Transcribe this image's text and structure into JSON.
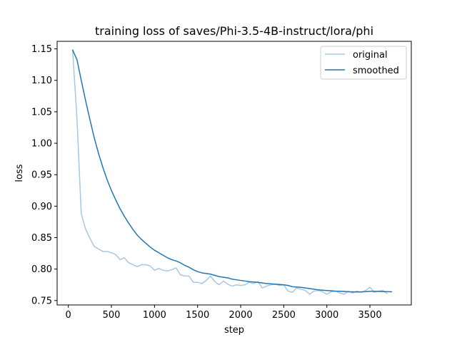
{
  "chart_data": {
    "type": "line",
    "title": "training loss of saves/Phi-3.5-4B-instruct/lora/phi",
    "xlabel": "step",
    "ylabel": "loss",
    "xlim": [
      -130,
      3980
    ],
    "ylim": [
      0.743,
      1.162
    ],
    "xticks": [
      0,
      500,
      1000,
      1500,
      2000,
      2500,
      3000,
      3500
    ],
    "xtick_labels": [
      "0",
      "500",
      "1000",
      "1500",
      "2000",
      "2500",
      "3000",
      "3500"
    ],
    "yticks": [
      0.75,
      0.8,
      0.85,
      0.9,
      0.95,
      1.0,
      1.05,
      1.1,
      1.15
    ],
    "ytick_labels": [
      "0.75",
      "0.80",
      "0.85",
      "0.90",
      "0.95",
      "1.00",
      "1.05",
      "1.10",
      "1.15"
    ],
    "grid": false,
    "legend_position": "top-right",
    "series": [
      {
        "name": "original",
        "color": "#a6c8e2",
        "points": [
          [
            50,
            1.148
          ],
          [
            100,
            1.04
          ],
          [
            150,
            0.888
          ],
          [
            200,
            0.864
          ],
          [
            250,
            0.849
          ],
          [
            300,
            0.836
          ],
          [
            350,
            0.832
          ],
          [
            400,
            0.828
          ],
          [
            450,
            0.828
          ],
          [
            500,
            0.826
          ],
          [
            550,
            0.823
          ],
          [
            600,
            0.815
          ],
          [
            650,
            0.818
          ],
          [
            700,
            0.81
          ],
          [
            750,
            0.807
          ],
          [
            800,
            0.804
          ],
          [
            850,
            0.807
          ],
          [
            900,
            0.807
          ],
          [
            950,
            0.805
          ],
          [
            1000,
            0.798
          ],
          [
            1050,
            0.801
          ],
          [
            1100,
            0.798
          ],
          [
            1150,
            0.797
          ],
          [
            1200,
            0.799
          ],
          [
            1250,
            0.802
          ],
          [
            1300,
            0.791
          ],
          [
            1350,
            0.789
          ],
          [
            1400,
            0.789
          ],
          [
            1450,
            0.779
          ],
          [
            1500,
            0.779
          ],
          [
            1550,
            0.777
          ],
          [
            1600,
            0.782
          ],
          [
            1650,
            0.789
          ],
          [
            1700,
            0.78
          ],
          [
            1750,
            0.775
          ],
          [
            1800,
            0.781
          ],
          [
            1850,
            0.776
          ],
          [
            1900,
            0.773
          ],
          [
            1950,
            0.775
          ],
          [
            2000,
            0.774
          ],
          [
            2050,
            0.775
          ],
          [
            2100,
            0.779
          ],
          [
            2150,
            0.777
          ],
          [
            2200,
            0.78
          ],
          [
            2250,
            0.77
          ],
          [
            2300,
            0.773
          ],
          [
            2350,
            0.775
          ],
          [
            2400,
            0.776
          ],
          [
            2450,
            0.774
          ],
          [
            2500,
            0.775
          ],
          [
            2550,
            0.765
          ],
          [
            2600,
            0.763
          ],
          [
            2650,
            0.77
          ],
          [
            2700,
            0.768
          ],
          [
            2750,
            0.766
          ],
          [
            2800,
            0.76
          ],
          [
            2850,
            0.765
          ],
          [
            2900,
            0.766
          ],
          [
            2950,
            0.764
          ],
          [
            3000,
            0.76
          ],
          [
            3050,
            0.764
          ],
          [
            3100,
            0.765
          ],
          [
            3150,
            0.762
          ],
          [
            3200,
            0.76
          ],
          [
            3250,
            0.765
          ],
          [
            3300,
            0.762
          ],
          [
            3350,
            0.765
          ],
          [
            3400,
            0.763
          ],
          [
            3450,
            0.766
          ],
          [
            3500,
            0.771
          ],
          [
            3550,
            0.763
          ],
          [
            3600,
            0.765
          ],
          [
            3650,
            0.766
          ],
          [
            3700,
            0.761
          ]
        ]
      },
      {
        "name": "smoothed",
        "color": "#1f77b4",
        "points": [
          [
            50,
            1.148
          ],
          [
            100,
            1.133
          ],
          [
            150,
            1.1
          ],
          [
            200,
            1.068
          ],
          [
            250,
            1.038
          ],
          [
            300,
            1.009
          ],
          [
            350,
            0.984
          ],
          [
            400,
            0.962
          ],
          [
            450,
            0.942
          ],
          [
            500,
            0.925
          ],
          [
            550,
            0.91
          ],
          [
            600,
            0.896
          ],
          [
            650,
            0.884
          ],
          [
            700,
            0.873
          ],
          [
            750,
            0.863
          ],
          [
            800,
            0.854
          ],
          [
            850,
            0.847
          ],
          [
            900,
            0.841
          ],
          [
            950,
            0.835
          ],
          [
            1000,
            0.83
          ],
          [
            1050,
            0.826
          ],
          [
            1100,
            0.822
          ],
          [
            1150,
            0.818
          ],
          [
            1200,
            0.815
          ],
          [
            1250,
            0.813
          ],
          [
            1300,
            0.81
          ],
          [
            1350,
            0.806
          ],
          [
            1400,
            0.803
          ],
          [
            1450,
            0.799
          ],
          [
            1500,
            0.796
          ],
          [
            1550,
            0.794
          ],
          [
            1600,
            0.793
          ],
          [
            1650,
            0.792
          ],
          [
            1700,
            0.79
          ],
          [
            1750,
            0.788
          ],
          [
            1800,
            0.787
          ],
          [
            1850,
            0.786
          ],
          [
            1900,
            0.784
          ],
          [
            1950,
            0.783
          ],
          [
            2000,
            0.782
          ],
          [
            2050,
            0.781
          ],
          [
            2100,
            0.78
          ],
          [
            2150,
            0.7795
          ],
          [
            2200,
            0.779
          ],
          [
            2250,
            0.778
          ],
          [
            2300,
            0.777
          ],
          [
            2350,
            0.7765
          ],
          [
            2400,
            0.776
          ],
          [
            2450,
            0.7755
          ],
          [
            2500,
            0.775
          ],
          [
            2550,
            0.774
          ],
          [
            2600,
            0.772
          ],
          [
            2650,
            0.7715
          ],
          [
            2700,
            0.771
          ],
          [
            2750,
            0.77
          ],
          [
            2800,
            0.769
          ],
          [
            2850,
            0.768
          ],
          [
            2900,
            0.767
          ],
          [
            2950,
            0.7665
          ],
          [
            3000,
            0.766
          ],
          [
            3050,
            0.7655
          ],
          [
            3100,
            0.765
          ],
          [
            3150,
            0.7648
          ],
          [
            3200,
            0.7645
          ],
          [
            3250,
            0.764
          ],
          [
            3300,
            0.7638
          ],
          [
            3350,
            0.7637
          ],
          [
            3400,
            0.7638
          ],
          [
            3450,
            0.7641
          ],
          [
            3500,
            0.7647
          ],
          [
            3550,
            0.7647
          ],
          [
            3600,
            0.7645
          ],
          [
            3650,
            0.7643
          ],
          [
            3700,
            0.7641
          ],
          [
            3750,
            0.764
          ]
        ]
      }
    ]
  }
}
